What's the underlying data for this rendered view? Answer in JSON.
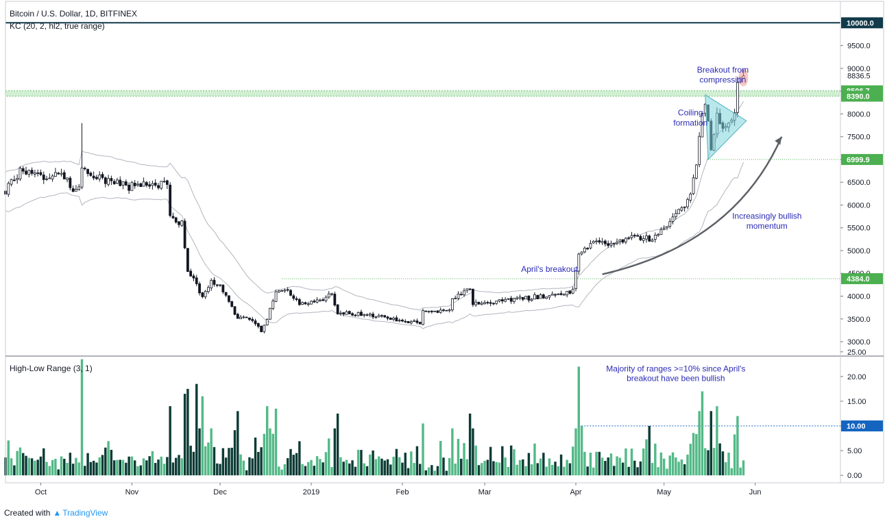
{
  "header": {
    "symbol_title": "Bitcoin / U.S. Dollar, 1D, BITFINEX",
    "indicator": "KC (20, 2, hl2, true range)",
    "sub_indicator": "High-Low Range (3, 1)"
  },
  "footer": {
    "created_with": "Created with",
    "brand": "TradingView"
  },
  "colors": {
    "up": "#53b987",
    "down": "#0c3b35",
    "candle": "#131722",
    "channel": "#b2b5be",
    "accent_blue": "#2b2bb5",
    "level_green": "#4caf50",
    "triangle": "#7ed3dc",
    "dark_line": "#113a4a"
  },
  "chart_data": [
    {
      "type": "candlestick",
      "title": "Bitcoin / U.S. Dollar, 1D, BITFINEX",
      "indicator": "KC (20, 2, hl2, true range)",
      "ylim": [
        2700,
        10200
      ],
      "yticks": [
        3000,
        3500,
        4000,
        4500,
        5000,
        5500,
        6000,
        6500,
        7000,
        7500,
        8000,
        8500,
        9000,
        9500
      ],
      "ytick_labels": [
        "3000.0",
        "3500.0",
        "4000.0",
        "4500.0",
        "5000.0",
        "5500.0",
        "6000.0",
        "6500.0",
        "7000.0",
        "7500.0",
        "8000.0",
        "8500.0",
        "9000.0",
        "9500.0"
      ],
      "x_range": [
        "2018-09-19",
        "2019-06-30"
      ],
      "xticks": [
        {
          "date": "2018-10-01",
          "label": "Oct"
        },
        {
          "date": "2018-11-01",
          "label": "Nov"
        },
        {
          "date": "2018-12-01",
          "label": "Dec"
        },
        {
          "date": "2019-01-01",
          "label": "2019"
        },
        {
          "date": "2019-02-01",
          "label": "Feb"
        },
        {
          "date": "2019-03-01",
          "label": "Mar"
        },
        {
          "date": "2019-04-01",
          "label": "Apr"
        },
        {
          "date": "2019-05-01",
          "label": "May"
        },
        {
          "date": "2019-06-01",
          "label": "Jun"
        }
      ],
      "anchors": [
        [
          "2018-09-19",
          6300
        ],
        [
          "2018-09-24",
          6750
        ],
        [
          "2018-10-01",
          6600
        ],
        [
          "2018-10-08",
          6650
        ],
        [
          "2018-10-10",
          6650
        ],
        [
          "2018-10-11",
          6300
        ],
        [
          "2018-10-14",
          6450
        ],
        [
          "2018-10-15",
          6850
        ],
        [
          "2018-10-20",
          6600
        ],
        [
          "2018-10-31",
          6400
        ],
        [
          "2018-11-05",
          6480
        ],
        [
          "2018-11-13",
          6450
        ],
        [
          "2018-11-14",
          5700
        ],
        [
          "2018-11-16",
          5600
        ],
        [
          "2018-11-18",
          5650
        ],
        [
          "2018-11-20",
          4600
        ],
        [
          "2018-11-25",
          4000
        ],
        [
          "2018-11-28",
          4300
        ],
        [
          "2018-12-01",
          4200
        ],
        [
          "2018-12-07",
          3500
        ],
        [
          "2018-12-10",
          3550
        ],
        [
          "2018-12-15",
          3250
        ],
        [
          "2018-12-17",
          3500
        ],
        [
          "2018-12-20",
          4100
        ],
        [
          "2018-12-24",
          4100
        ],
        [
          "2018-12-28",
          3800
        ],
        [
          "2019-01-05",
          3900
        ],
        [
          "2019-01-08",
          4050
        ],
        [
          "2019-01-10",
          3650
        ],
        [
          "2019-01-20",
          3600
        ],
        [
          "2019-01-31",
          3480
        ],
        [
          "2019-02-07",
          3420
        ],
        [
          "2019-02-08",
          3650
        ],
        [
          "2019-02-17",
          3700
        ],
        [
          "2019-02-18",
          3950
        ],
        [
          "2019-02-24",
          4150
        ],
        [
          "2019-02-25",
          3850
        ],
        [
          "2019-03-10",
          3900
        ],
        [
          "2019-03-20",
          4000
        ],
        [
          "2019-03-31",
          4100
        ],
        [
          "2019-04-02",
          4950
        ],
        [
          "2019-04-08",
          5250
        ],
        [
          "2019-04-13",
          5100
        ],
        [
          "2019-04-20",
          5300
        ],
        [
          "2019-04-25",
          5300
        ],
        [
          "2019-04-26",
          5150
        ],
        [
          "2019-05-02",
          5600
        ],
        [
          "2019-05-05",
          5750
        ],
        [
          "2019-05-08",
          6000
        ],
        [
          "2019-05-10",
          6300
        ],
        [
          "2019-05-12",
          6900
        ],
        [
          "2019-05-14",
          8000
        ],
        [
          "2019-05-15",
          8200
        ],
        [
          "2019-05-16",
          7900
        ],
        [
          "2019-05-17",
          7300
        ],
        [
          "2019-05-18",
          7500
        ],
        [
          "2019-05-19",
          8000
        ],
        [
          "2019-05-20",
          7800
        ],
        [
          "2019-05-22",
          7700
        ],
        [
          "2019-05-23",
          7800
        ],
        [
          "2019-05-25",
          8050
        ],
        [
          "2019-05-26",
          8600
        ],
        [
          "2019-05-27",
          8800
        ],
        [
          "2019-05-28",
          8836.5
        ]
      ],
      "wick_spikes": [
        {
          "date": "2018-10-15",
          "high": 7800
        }
      ],
      "levels": [
        {
          "value": 10000.0,
          "label": "10000.0",
          "style": "solid-dark"
        },
        {
          "value": 8836.5,
          "label": "8836.5",
          "style": "price"
        },
        {
          "value": 8506.7,
          "label": "8506.7",
          "style": "zone-top"
        },
        {
          "value": 8390.0,
          "label": "8390.0",
          "style": "zone-bottom"
        },
        {
          "value": 6999.9,
          "label": "6999.9",
          "style": "dotted",
          "from": "2019-05-16"
        },
        {
          "value": 4384.0,
          "label": "4384.0",
          "style": "dotted",
          "from": "2018-12-22"
        }
      ],
      "annotations": [
        {
          "text": "Breakout from",
          "date": "2019-05-21",
          "value": 8905
        },
        {
          "text": "compression",
          "date": "2019-05-21",
          "value": 8690
        },
        {
          "text": "Coiling",
          "date": "2019-05-10",
          "value": 7965
        },
        {
          "text": "formation",
          "date": "2019-05-10",
          "value": 7745
        },
        {
          "text": "Increasingly bullish",
          "date": "2019-06-05",
          "value": 5700
        },
        {
          "text": "momentum",
          "date": "2019-06-05",
          "value": 5480
        },
        {
          "text": "April's breakout",
          "date": "2019-03-23",
          "value": 4530
        }
      ]
    },
    {
      "type": "bar",
      "title": "High-Low Range (3, 1)",
      "ylim": [
        -1.5,
        24
      ],
      "yticks": [
        0,
        5,
        10,
        15,
        20,
        25
      ],
      "ytick_labels": [
        "0.00",
        "5.00",
        "10.00",
        "15.00",
        "20.00",
        "25.00"
      ],
      "threshold": {
        "value": 10.0,
        "label": "10.00",
        "from": "2019-04-02"
      },
      "spikes": [
        {
          "date": "2018-10-15",
          "value": 23.5,
          "dir": "up"
        },
        {
          "date": "2018-11-14",
          "value": 14.0,
          "dir": "down"
        },
        {
          "date": "2018-11-19",
          "value": 16.5,
          "dir": "down"
        },
        {
          "date": "2018-11-20",
          "value": 17.5,
          "dir": "down"
        },
        {
          "date": "2018-11-23",
          "value": 18.5,
          "dir": "down"
        },
        {
          "date": "2018-11-25",
          "value": 16.0,
          "dir": "up"
        },
        {
          "date": "2018-12-07",
          "value": 13.0,
          "dir": "down"
        },
        {
          "date": "2018-12-17",
          "value": 14.0,
          "dir": "up"
        },
        {
          "date": "2018-12-20",
          "value": 13.5,
          "dir": "up"
        },
        {
          "date": "2019-01-10",
          "value": 12.5,
          "dir": "down"
        },
        {
          "date": "2019-02-08",
          "value": 10.5,
          "dir": "up"
        },
        {
          "date": "2019-02-24",
          "value": 12.5,
          "dir": "down"
        },
        {
          "date": "2019-04-02",
          "value": 22.0,
          "dir": "up"
        },
        {
          "date": "2019-04-03",
          "value": 10.0,
          "dir": "up"
        },
        {
          "date": "2019-04-26",
          "value": 10.0,
          "dir": "down"
        },
        {
          "date": "2019-05-13",
          "value": 13.0,
          "dir": "up"
        },
        {
          "date": "2019-05-14",
          "value": 17.0,
          "dir": "up"
        },
        {
          "date": "2019-05-17",
          "value": 13.0,
          "dir": "down"
        },
        {
          "date": "2019-05-19",
          "value": 14.0,
          "dir": "up"
        },
        {
          "date": "2019-05-26",
          "value": 12.0,
          "dir": "up"
        }
      ],
      "annotations": [
        {
          "text": "Majority of ranges >=10% since April's",
          "date": "2019-05-05",
          "value": 21.0
        },
        {
          "text": "breakout have been bullish",
          "date": "2019-05-05",
          "value": 19.1
        }
      ]
    }
  ]
}
